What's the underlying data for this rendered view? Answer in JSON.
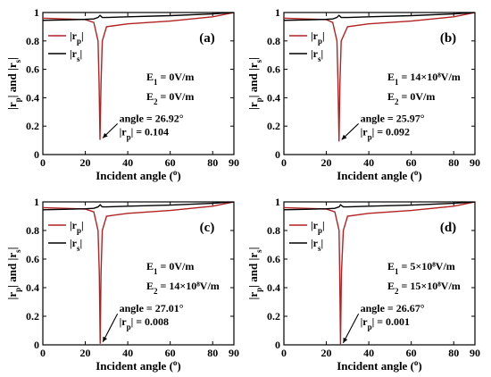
{
  "chart_data": [
    {
      "type": "line",
      "panel_label": "(a)",
      "xlabel": "Incident angle (°)",
      "ylabel": "|rp| and |rs|",
      "xlim": [
        0,
        90
      ],
      "ylim": [
        0,
        1
      ],
      "x_ticks": [
        "0",
        "20",
        "40",
        "60",
        "80",
        "90"
      ],
      "y_ticks": [
        "0",
        "0.2",
        "0.4",
        "0.6",
        "0.8",
        "1"
      ],
      "legend": [
        {
          "name": "|rp|",
          "color": "#b22222"
        },
        {
          "name": "|rs|",
          "color": "#000000"
        }
      ],
      "legend_position": "top-left",
      "field_lines": [
        "E1 = 0V/m",
        "E2 = 0V/m"
      ],
      "min_angle": 26.92,
      "min_rp": 0.104,
      "annotation": [
        "angle = 26.92°",
        "|rp| = 0.104"
      ],
      "series": [
        {
          "name": "|rp|",
          "x": [
            0,
            10,
            20,
            24,
            26,
            26.5,
            26.92,
            27.4,
            28,
            30,
            40,
            60,
            80,
            90
          ],
          "values": [
            0.96,
            0.955,
            0.95,
            0.93,
            0.8,
            0.5,
            0.104,
            0.5,
            0.8,
            0.9,
            0.92,
            0.94,
            0.97,
            1.0
          ]
        },
        {
          "name": "|rs|",
          "x": [
            0,
            10,
            20,
            24,
            26,
            26.92,
            28,
            30,
            40,
            60,
            80,
            90
          ],
          "values": [
            0.945,
            0.948,
            0.952,
            0.955,
            0.965,
            0.98,
            0.965,
            0.965,
            0.97,
            0.978,
            0.99,
            1.0
          ]
        }
      ]
    },
    {
      "type": "line",
      "panel_label": "(b)",
      "xlabel": "Incident angle (°)",
      "ylabel": "|rp| and |rs|",
      "xlim": [
        0,
        90
      ],
      "ylim": [
        0,
        1
      ],
      "x_ticks": [
        "0",
        "20",
        "40",
        "60",
        "80",
        "90"
      ],
      "y_ticks": [
        "0",
        "0.2",
        "0.4",
        "0.6",
        "0.8",
        "1"
      ],
      "legend": [
        {
          "name": "|rp|",
          "color": "#b22222"
        },
        {
          "name": "|rs|",
          "color": "#000000"
        }
      ],
      "legend_position": "top-left",
      "field_lines": [
        "E1 = 14×10⁸V/m",
        "E2 = 0V/m"
      ],
      "min_angle": 25.97,
      "min_rp": 0.092,
      "annotation": [
        "angle = 25.97°",
        "|rp| = 0.092"
      ],
      "series": [
        {
          "name": "|rp|",
          "x": [
            0,
            10,
            20,
            23,
            25,
            25.5,
            25.97,
            26.4,
            27,
            30,
            40,
            60,
            80,
            90
          ],
          "values": [
            0.96,
            0.955,
            0.95,
            0.93,
            0.8,
            0.5,
            0.092,
            0.5,
            0.8,
            0.9,
            0.92,
            0.94,
            0.97,
            1.0
          ]
        },
        {
          "name": "|rs|",
          "x": [
            0,
            10,
            20,
            23,
            25,
            25.97,
            27,
            30,
            40,
            60,
            80,
            90
          ],
          "values": [
            0.945,
            0.948,
            0.952,
            0.955,
            0.965,
            0.98,
            0.965,
            0.965,
            0.97,
            0.978,
            0.99,
            1.0
          ]
        }
      ]
    },
    {
      "type": "line",
      "panel_label": "(c)",
      "xlabel": "Incident angle (°)",
      "ylabel": "|rp| and |rs|",
      "xlim": [
        0,
        90
      ],
      "ylim": [
        0,
        1
      ],
      "x_ticks": [
        "0",
        "20",
        "40",
        "60",
        "80",
        "90"
      ],
      "y_ticks": [
        "0",
        "0.2",
        "0.4",
        "0.6",
        "0.8",
        "1"
      ],
      "legend": [
        {
          "name": "|rp|",
          "color": "#b22222"
        },
        {
          "name": "|rs|",
          "color": "#000000"
        }
      ],
      "legend_position": "top-left",
      "field_lines": [
        "E1 = 0V/m",
        "E2 = 14×10⁸V/m"
      ],
      "min_angle": 27.01,
      "min_rp": 0.008,
      "annotation": [
        "angle = 27.01°",
        "|rp| = 0.008"
      ],
      "series": [
        {
          "name": "|rp|",
          "x": [
            0,
            10,
            20,
            24,
            26,
            26.6,
            27.01,
            27.4,
            28,
            30,
            40,
            60,
            80,
            90
          ],
          "values": [
            0.96,
            0.955,
            0.95,
            0.93,
            0.8,
            0.5,
            0.008,
            0.5,
            0.8,
            0.9,
            0.92,
            0.94,
            0.97,
            1.0
          ]
        },
        {
          "name": "|rs|",
          "x": [
            0,
            10,
            20,
            24,
            26,
            27.01,
            28,
            30,
            40,
            60,
            80,
            90
          ],
          "values": [
            0.945,
            0.948,
            0.952,
            0.955,
            0.965,
            0.98,
            0.965,
            0.965,
            0.97,
            0.978,
            0.99,
            1.0
          ]
        }
      ]
    },
    {
      "type": "line",
      "panel_label": "(d)",
      "xlabel": "Incident angle (°)",
      "ylabel": "|rp| and |rs|",
      "xlim": [
        0,
        90
      ],
      "ylim": [
        0,
        1
      ],
      "x_ticks": [
        "0",
        "20",
        "40",
        "60",
        "80",
        "90"
      ],
      "y_ticks": [
        "0",
        "0.2",
        "0.4",
        "0.6",
        "0.8",
        "1"
      ],
      "legend": [
        {
          "name": "|rp|",
          "color": "#b22222"
        },
        {
          "name": "|rs|",
          "color": "#000000"
        }
      ],
      "legend_position": "top-left",
      "field_lines": [
        "E1 = 5×10⁸V/m",
        "E2 = 15×10⁸V/m"
      ],
      "min_angle": 26.67,
      "min_rp": 0.001,
      "annotation": [
        "angle = 26.67°",
        "|rp| = 0.001"
      ],
      "series": [
        {
          "name": "|rp|",
          "x": [
            0,
            10,
            20,
            24,
            26,
            26.3,
            26.67,
            27.1,
            28,
            30,
            40,
            60,
            80,
            90
          ],
          "values": [
            0.96,
            0.955,
            0.95,
            0.93,
            0.8,
            0.5,
            0.001,
            0.5,
            0.8,
            0.9,
            0.92,
            0.94,
            0.97,
            1.0
          ]
        },
        {
          "name": "|rs|",
          "x": [
            0,
            10,
            20,
            24,
            26,
            26.67,
            28,
            30,
            40,
            60,
            80,
            90
          ],
          "values": [
            0.945,
            0.948,
            0.952,
            0.955,
            0.965,
            0.98,
            0.965,
            0.965,
            0.97,
            0.978,
            0.99,
            1.0
          ]
        }
      ]
    }
  ]
}
